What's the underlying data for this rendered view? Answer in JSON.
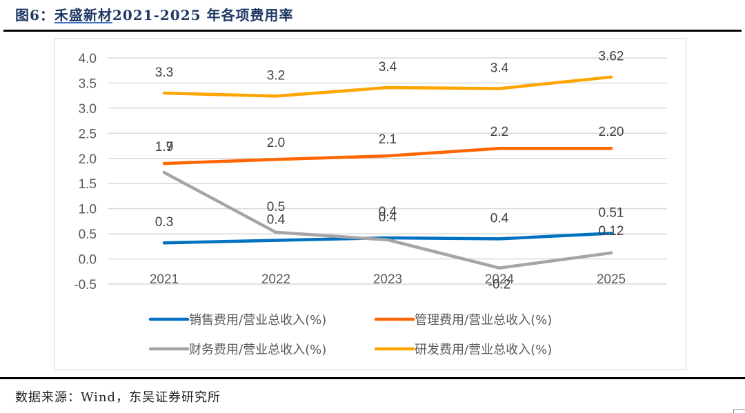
{
  "figure": {
    "title_prefix": "图6：",
    "title_company": "禾盛新材",
    "title_suffix": "2021-2025 年各项费用率",
    "source": "数据来源：Wind，东吴证券研究所"
  },
  "chart_data": {
    "type": "line",
    "title": "禾盛新材2021-2025年各项费用率",
    "xlabel": "",
    "ylabel": "",
    "categories": [
      "2021",
      "2022",
      "2023",
      "2024",
      "2025"
    ],
    "ylim": [
      -0.5,
      4.0
    ],
    "yticks": [
      -0.5,
      0.0,
      0.5,
      1.0,
      1.5,
      2.0,
      2.5,
      3.0,
      3.5,
      4.0
    ],
    "ytick_labels": [
      "-0.5",
      "0.0",
      "0.5",
      "1.0",
      "1.5",
      "2.0",
      "2.5",
      "3.0",
      "3.5",
      "4.0"
    ],
    "grid": true,
    "legend_position": "bottom",
    "series": [
      {
        "name": "销售费用/营业总收入(%)",
        "color": "#0070c0",
        "values": [
          0.32,
          0.37,
          0.42,
          0.4,
          0.51
        ],
        "labels": [
          "0.3",
          "0.4",
          "0.4",
          "0.4",
          "0.51"
        ]
      },
      {
        "name": "管理费用/营业总收入(%)",
        "color": "#ff6600",
        "values": [
          1.9,
          1.98,
          2.05,
          2.2,
          2.2
        ],
        "labels": [
          "1.9",
          "2.0",
          "2.1",
          "2.2",
          "2.20"
        ]
      },
      {
        "name": "财务费用/营业总收入(%)",
        "color": "#a5a5a5",
        "values": [
          1.72,
          0.53,
          0.38,
          -0.18,
          0.12
        ],
        "labels": [
          "1.7",
          "0.5",
          "0.4",
          "-0.2",
          "0.12"
        ]
      },
      {
        "name": "研发费用/营业总收入(%)",
        "color": "#ffa500",
        "values": [
          3.3,
          3.24,
          3.41,
          3.39,
          3.62
        ],
        "labels": [
          "3.3",
          "3.2",
          "3.4",
          "3.4",
          "3.62"
        ]
      }
    ]
  }
}
